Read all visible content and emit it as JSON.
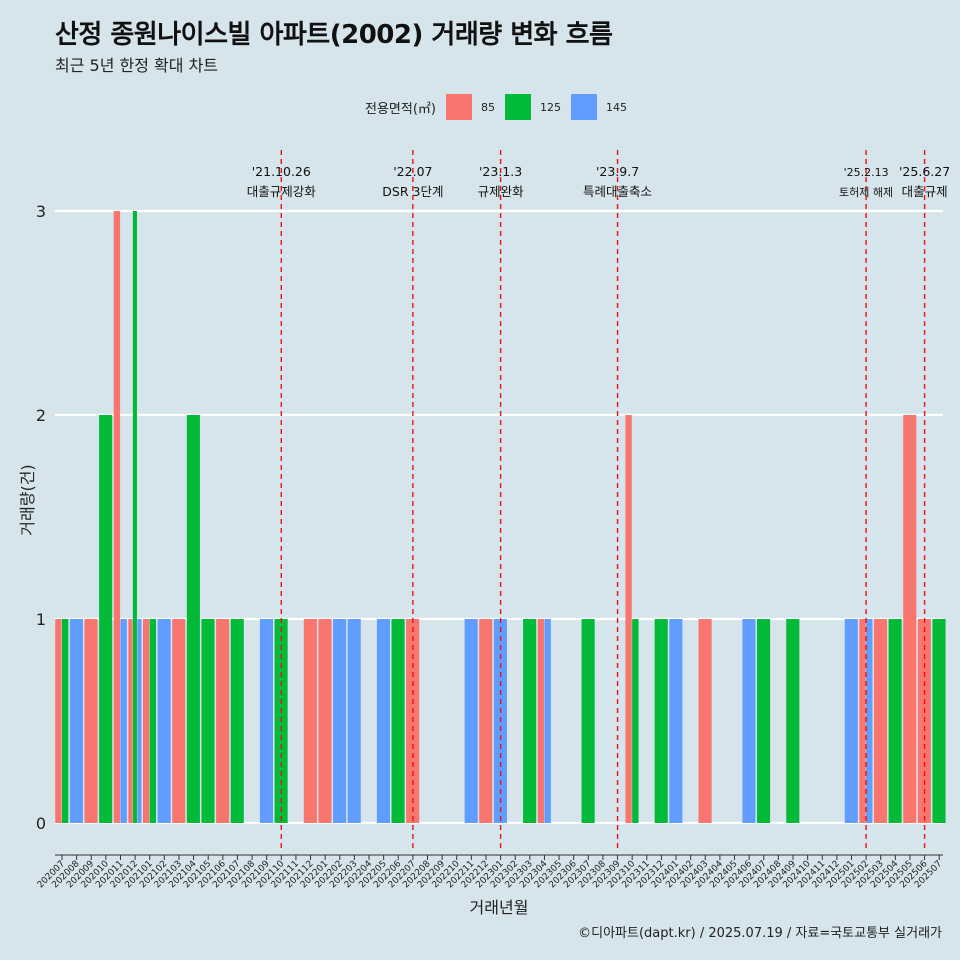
{
  "title": "산정 종원나이스빌 아파트(2002) 거래량 변화 흐름",
  "subtitle": "최근 5년 한정 확대 차트",
  "caption": "©디아파트(dapt.kr) / 2025.07.19 / 자료=국토교통부 실거래가",
  "legend": {
    "title": "전용면적(㎡)",
    "items": [
      {
        "label": "85",
        "color": "#f8766d"
      },
      {
        "label": "125",
        "color": "#00ba38"
      },
      {
        "label": "145",
        "color": "#619cff"
      }
    ]
  },
  "chart_data": {
    "type": "bar",
    "title": "산정 종원나이스빌 아파트(2002) 거래량 변화 흐름",
    "subtitle": "최근 5년 한정 확대 차트",
    "xlabel": "거래년월",
    "ylabel": "거래량(건)",
    "ylim": [
      0,
      3
    ],
    "yticks": [
      0,
      1,
      2,
      3
    ],
    "grid": true,
    "legend_position": "top",
    "categories": [
      "202007",
      "202008",
      "202009",
      "202010",
      "202011",
      "202012",
      "202101",
      "202102",
      "202103",
      "202104",
      "202105",
      "202106",
      "202107",
      "202108",
      "202109",
      "202110",
      "202111",
      "202112",
      "202201",
      "202202",
      "202203",
      "202204",
      "202205",
      "202206",
      "202207",
      "202208",
      "202209",
      "202210",
      "202211",
      "202212",
      "202301",
      "202302",
      "202303",
      "202304",
      "202305",
      "202306",
      "202307",
      "202308",
      "202309",
      "202310",
      "202311",
      "202312",
      "202401",
      "202402",
      "202403",
      "202404",
      "202405",
      "202406",
      "202407",
      "202408",
      "202409",
      "202410",
      "202411",
      "202412",
      "202501",
      "202502",
      "202503",
      "202504",
      "202505",
      "202506",
      "202507"
    ],
    "series": [
      {
        "name": "85",
        "color": "#f8766d",
        "values": [
          1,
          0,
          1,
          0,
          3,
          1,
          1,
          0,
          1,
          0,
          0,
          1,
          0,
          0,
          0,
          0,
          0,
          1,
          1,
          0,
          0,
          0,
          0,
          0,
          1,
          0,
          0,
          0,
          0,
          1,
          0,
          0,
          0,
          1,
          0,
          0,
          0,
          0,
          0,
          2,
          0,
          0,
          0,
          0,
          1,
          0,
          0,
          0,
          0,
          0,
          0,
          0,
          0,
          0,
          0,
          1,
          1,
          0,
          2,
          1,
          0
        ]
      },
      {
        "name": "125",
        "color": "#00ba38",
        "values": [
          1,
          0,
          0,
          2,
          0,
          3,
          1,
          0,
          0,
          2,
          1,
          0,
          1,
          0,
          0,
          1,
          0,
          0,
          0,
          0,
          0,
          0,
          0,
          1,
          0,
          0,
          0,
          0,
          0,
          0,
          0,
          0,
          1,
          0,
          0,
          0,
          1,
          0,
          0,
          1,
          0,
          1,
          0,
          0,
          0,
          0,
          0,
          0,
          1,
          0,
          1,
          0,
          0,
          0,
          0,
          0,
          0,
          1,
          0,
          0,
          1
        ]
      },
      {
        "name": "145",
        "color": "#619cff",
        "values": [
          0,
          1,
          0,
          0,
          1,
          1,
          0,
          1,
          0,
          0,
          0,
          0,
          0,
          0,
          1,
          0,
          0,
          0,
          0,
          1,
          1,
          0,
          1,
          0,
          0,
          0,
          0,
          0,
          1,
          0,
          1,
          0,
          0,
          1,
          0,
          0,
          0,
          0,
          0,
          0,
          0,
          0,
          1,
          0,
          0,
          0,
          0,
          1,
          0,
          0,
          0,
          0,
          0,
          0,
          1,
          1,
          0,
          0,
          0,
          0,
          0
        ]
      }
    ],
    "events": [
      {
        "date": "'21.10.26",
        "label": "대출규제강화",
        "category": "202110"
      },
      {
        "date": "'22.07",
        "label": "DSR 3단계",
        "category": "202207"
      },
      {
        "date": "'23.1.3",
        "label": "규제완화",
        "category": "202301"
      },
      {
        "date": "'23.9.7",
        "label": "특례대출축소",
        "category": "202309"
      },
      {
        "date": "'25.2.13",
        "label": "토허제 해제",
        "category": "202502"
      },
      {
        "date": "'25.6.27",
        "label": "대출규제",
        "category": "202506"
      }
    ]
  }
}
